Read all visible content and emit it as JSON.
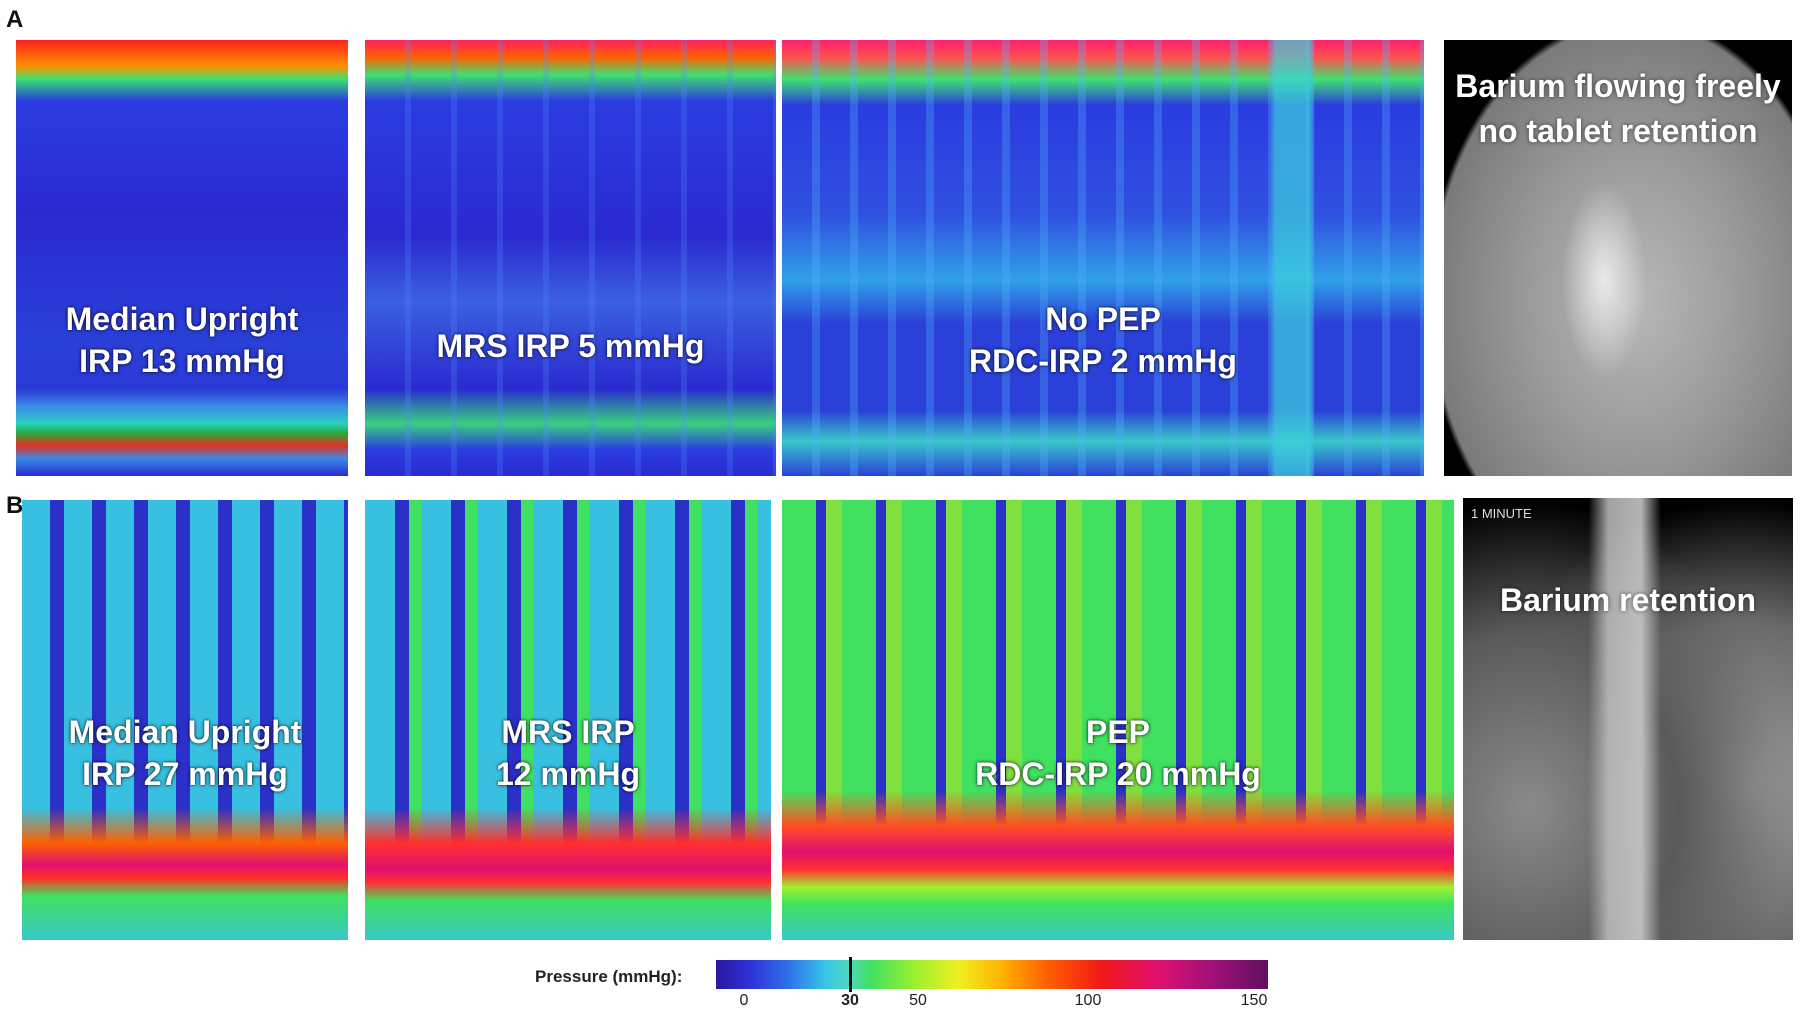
{
  "rows": {
    "a": {
      "label": "A"
    },
    "b": {
      "label": "B"
    }
  },
  "panels_a": {
    "upright": {
      "line1": "Median Upright",
      "line2": "IRP 13 mmHg"
    },
    "mrs": {
      "line1": "MRS IRP 5 mmHg"
    },
    "rdc": {
      "line1": "No PEP",
      "line2": "RDC-IRP 2 mmHg"
    },
    "xray": {
      "line1": "Barium flowing freely",
      "line2": "no tablet retention"
    }
  },
  "panels_b": {
    "upright": {
      "line1": "Median Upright",
      "line2": "IRP 27 mmHg"
    },
    "mrs": {
      "line1": "MRS IRP",
      "line2": "12 mmHg"
    },
    "rdc": {
      "line1": "PEP",
      "line2": "RDC-IRP 20 mmHg"
    },
    "xray": {
      "corner": "1 MINUTE",
      "line1": "Barium retention"
    }
  },
  "colorbar": {
    "title": "Pressure (mmHg):",
    "ticks": [
      "0",
      "30",
      "50",
      "100",
      "150"
    ],
    "marker_value": 30,
    "min": 0,
    "max": 150
  },
  "colors": {
    "low_pressure": "#2a2ad0",
    "mid_pressure": "#40e0a0",
    "high_pressure": "#f01818",
    "peak_pressure": "#e01070"
  }
}
